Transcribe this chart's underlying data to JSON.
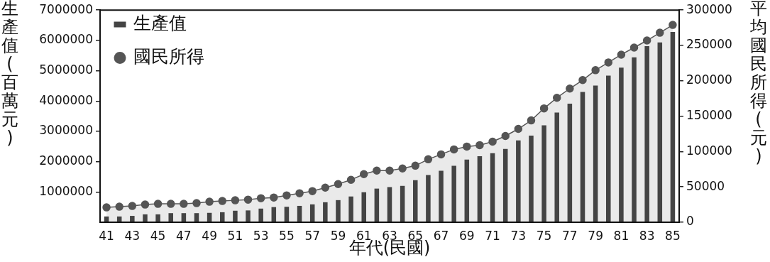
{
  "chart_data": {
    "type": "bar",
    "xlabel": "年代(民國)",
    "ylabel": "生產值(百萬元)",
    "y2label": "平均國民所得(元)",
    "categories": [
      "41",
      null,
      "43",
      null,
      "45",
      null,
      "47",
      null,
      "49",
      null,
      "51",
      null,
      "53",
      null,
      "55",
      null,
      "57",
      null,
      "59",
      null,
      "61",
      null,
      "63",
      null,
      "65",
      null,
      "67",
      null,
      "69",
      null,
      "71",
      null,
      "73",
      null,
      "75",
      null,
      "77",
      null,
      "79",
      null,
      "81",
      null,
      "83",
      null,
      "85"
    ],
    "series": [
      {
        "name": "生產值",
        "color": "#444444",
        "values": [
          190000,
          190000,
          210000,
          260000,
          260000,
          300000,
          300000,
          300000,
          310000,
          330000,
          380000,
          390000,
          450000,
          500000,
          510000,
          540000,
          590000,
          660000,
          730000,
          850000,
          990000,
          1110000,
          1160000,
          1200000,
          1390000,
          1560000,
          1700000,
          1860000,
          2070000,
          2180000,
          2280000,
          2420000,
          2700000,
          2860000,
          3200000,
          3620000,
          3910000,
          4300000,
          4510000,
          4840000,
          5100000,
          5440000,
          5810000,
          5930000,
          6280000
        ]
      },
      {
        "name": "國民所得",
        "type": "area",
        "axis": "y2",
        "color": "#555555",
        "values": [
          21000,
          22000,
          23000,
          25000,
          26000,
          26000,
          26000,
          27000,
          29000,
          30000,
          31000,
          32000,
          34000,
          35000,
          38000,
          41000,
          44000,
          49000,
          54000,
          60000,
          68000,
          73000,
          73000,
          76000,
          80000,
          89000,
          96000,
          103000,
          107000,
          109000,
          114000,
          122000,
          132000,
          144000,
          161000,
          176000,
          189000,
          201000,
          215000,
          226000,
          237000,
          247000,
          257000,
          268000,
          279000
        ]
      }
    ],
    "ylim": [
      0,
      7000000
    ],
    "yticks": [
      1000000,
      2000000,
      3000000,
      4000000,
      5000000,
      6000000,
      7000000
    ],
    "y2lim": [
      0,
      300000
    ],
    "y2ticks": [
      0,
      50000,
      100000,
      150000,
      200000,
      250000,
      300000
    ],
    "legend": "top left",
    "marker": "circle"
  }
}
